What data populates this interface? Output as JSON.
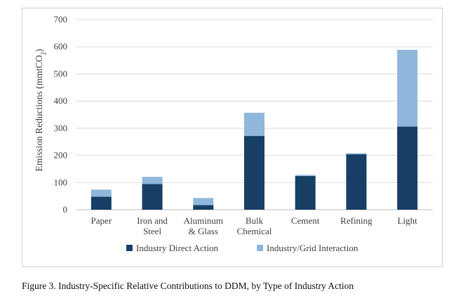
{
  "caption": "Figure 3. Industry-Specific Relative Contributions to DDM, by Type of Industry Action",
  "chart_data": {
    "type": "bar",
    "stacked": true,
    "categories": [
      [
        "Paper"
      ],
      [
        "Iron and",
        "Steel"
      ],
      [
        "Aluminum",
        "& Glass"
      ],
      [
        "Bulk",
        "Chemical"
      ],
      [
        "Cement"
      ],
      [
        "Refining"
      ],
      [
        "Light"
      ]
    ],
    "series": [
      {
        "name": "Industry Direct Action",
        "color": "#173f66",
        "values": [
          48,
          95,
          17,
          272,
          124,
          204,
          306
        ]
      },
      {
        "name": "Industry/Grid Interaction",
        "color": "#8fb7dc",
        "values": [
          26,
          26,
          26,
          85,
          4,
          4,
          283
        ]
      }
    ],
    "ylabel_main": "Emission Reductions (mmtCO",
    "ylabel_sub": "2",
    "ylabel_end": ")",
    "ylim": [
      0,
      700
    ],
    "yticks": [
      0,
      100,
      200,
      300,
      400,
      500,
      600,
      700
    ],
    "grid": true,
    "legend_position": "bottom"
  }
}
